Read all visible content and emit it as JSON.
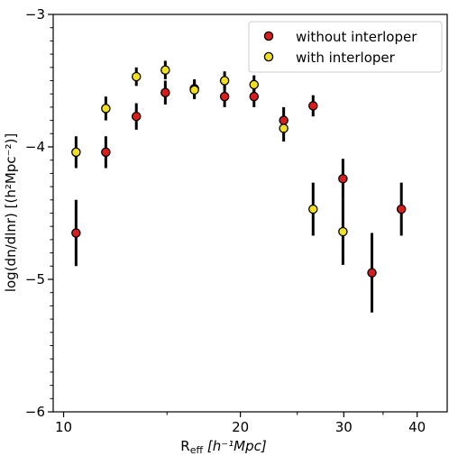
{
  "chart_data": {
    "type": "scatter",
    "xscale": "log",
    "xlim": [
      9.6,
      45
    ],
    "ylim": [
      -6,
      -3
    ],
    "x_ticks": [
      {
        "value": 10,
        "label": "10"
      },
      {
        "value": 20,
        "label": "20"
      },
      {
        "value": 30,
        "label": "30"
      },
      {
        "value": 40,
        "label": "40"
      }
    ],
    "x_minor_ticks": [
      15,
      25,
      35
    ],
    "y_ticks": [
      {
        "value": -3,
        "label": "−3"
      },
      {
        "value": -4,
        "label": "−4"
      },
      {
        "value": -5,
        "label": "−5"
      },
      {
        "value": -6,
        "label": "−6"
      }
    ],
    "y_minor_step": 0.1,
    "xlabel": {
      "main": "R",
      "sub": "eff",
      "unit": " [h⁻¹Mpc]"
    },
    "ylabel": "log(dn/dlnr) [(h²Mpc⁻²)]",
    "legend_position": "top-right",
    "grid": false,
    "series": [
      {
        "name": "without interloper",
        "color": "#d91c1c",
        "points": [
          {
            "x": 10.5,
            "y": -4.65,
            "err": 0.25
          },
          {
            "x": 11.8,
            "y": -4.04,
            "err": 0.12
          },
          {
            "x": 13.3,
            "y": -3.77,
            "err": 0.1
          },
          {
            "x": 14.9,
            "y": -3.59,
            "err": 0.09
          },
          {
            "x": 16.7,
            "y": -3.56,
            "err": 0.07
          },
          {
            "x": 18.8,
            "y": -3.62,
            "err": 0.08
          },
          {
            "x": 21.1,
            "y": -3.62,
            "err": 0.08
          },
          {
            "x": 23.7,
            "y": -3.8,
            "err": 0.1
          },
          {
            "x": 26.6,
            "y": -3.69,
            "err": 0.08
          },
          {
            "x": 29.9,
            "y": -4.24,
            "err": 0.15
          },
          {
            "x": 33.5,
            "y": -4.95,
            "err": 0.3
          },
          {
            "x": 37.6,
            "y": -4.47,
            "err": 0.2
          }
        ]
      },
      {
        "name": "with interloper",
        "color": "#f0e020",
        "points": [
          {
            "x": 10.5,
            "y": -4.04,
            "err": 0.12
          },
          {
            "x": 11.8,
            "y": -3.71,
            "err": 0.09
          },
          {
            "x": 13.3,
            "y": -3.47,
            "err": 0.07
          },
          {
            "x": 14.9,
            "y": -3.42,
            "err": 0.07
          },
          {
            "x": 16.7,
            "y": -3.57,
            "err": 0.07
          },
          {
            "x": 18.8,
            "y": -3.5,
            "err": 0.07
          },
          {
            "x": 21.1,
            "y": -3.53,
            "err": 0.07
          },
          {
            "x": 23.7,
            "y": -3.86,
            "err": 0.1
          },
          {
            "x": 26.6,
            "y": -4.47,
            "err": 0.2
          },
          {
            "x": 29.9,
            "y": -4.64,
            "err": 0.25
          }
        ]
      }
    ]
  }
}
